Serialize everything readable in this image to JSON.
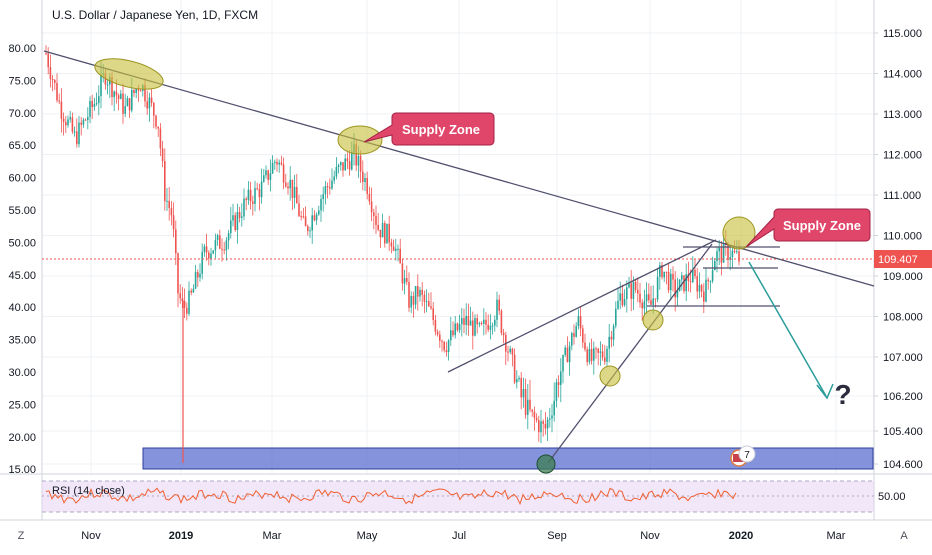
{
  "chart_data": {
    "type": "candlestick",
    "title": "U.S. Dollar / Japanese Yen, 1D, FXCM",
    "x_axis": {
      "labels": [
        "Nov",
        "2019",
        "Mar",
        "May",
        "Jul",
        "Sep",
        "Nov",
        "2020",
        "Mar"
      ],
      "bold": [
        "2019",
        "2020"
      ]
    },
    "y_axis_right": {
      "ticks": [
        "115.000",
        "114.000",
        "113.000",
        "112.000",
        "111.000",
        "110.000",
        "109.000",
        "108.000",
        "107.000",
        "106.200",
        "105.400",
        "104.600"
      ],
      "range": [
        104.4,
        115.4
      ]
    },
    "y_axis_left": {
      "ticks": [
        "80.00",
        "75.00",
        "70.00",
        "65.00",
        "60.00",
        "55.00",
        "50.00",
        "45.00",
        "40.00",
        "35.00",
        "30.00",
        "25.00",
        "20.00",
        "15.00"
      ]
    },
    "last_price": "109.407",
    "rsi": {
      "label": "RSI (14, close)",
      "tick": "50.00",
      "levels": [
        70,
        50,
        30
      ]
    },
    "annotations": {
      "supply_zone_1": "Supply Zone",
      "supply_zone_2": "Supply Zone",
      "question": "?",
      "event_count": "7"
    },
    "colors": {
      "up": "#26a69a",
      "down": "#ef5350",
      "trendline": "#50506e",
      "zone": "#4a5fc1",
      "callout": "#e0456a",
      "ellipse": "#c8c03e",
      "arrow": "#2a9d9a",
      "rsi_line": "#f06030",
      "rsi_band": "#e9d5f5"
    }
  },
  "ui": {
    "corner_left": "Z",
    "corner_right": "A"
  }
}
